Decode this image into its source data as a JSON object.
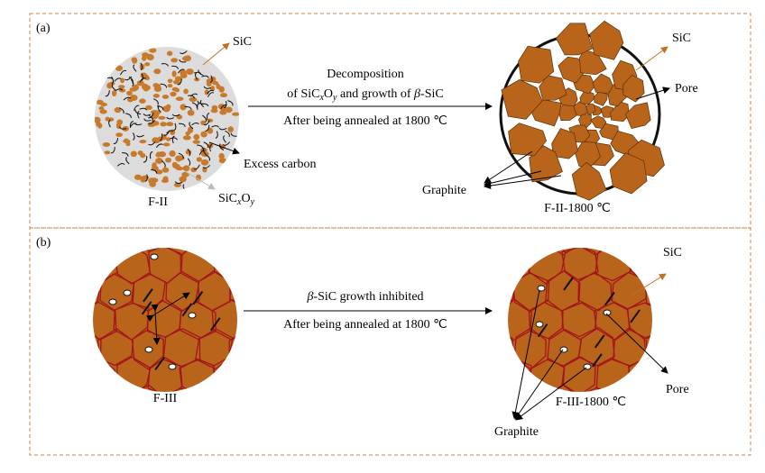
{
  "panels": [
    {
      "label": "(a)",
      "process": {
        "line1": "Decomposition",
        "line2": [
          "of SiC",
          "x",
          "O",
          "y",
          " and growth of ",
          "β",
          "-SiC"
        ],
        "line3": "After being annealed at 1800 ℃"
      },
      "left": {
        "caption": "F-II",
        "sic": "SiC",
        "carbon": "Excess carbon",
        "oxycarbide": [
          "SiC",
          "x",
          "O",
          "y"
        ]
      },
      "right": {
        "caption": "F-II-1800 ℃",
        "sic": "SiC",
        "pore": "Pore",
        "graphite": "Graphite"
      }
    },
    {
      "label": "(b)",
      "process": {
        "line1": [
          "β",
          "-SiC growth inhibited"
        ],
        "line2": "After being annealed at 1800 ℃"
      },
      "left": {
        "caption": "F-III"
      },
      "right": {
        "caption": "F-III-1800 ℃",
        "sic": "SiC",
        "pore": "Pore",
        "graphite": "Graphite"
      }
    }
  ]
}
